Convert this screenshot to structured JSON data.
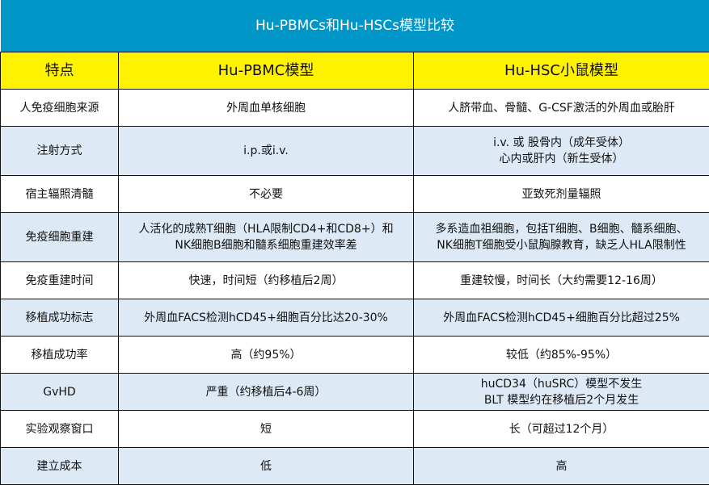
{
  "title": "Hu-PBMCs和Hu-HSCs模型比较",
  "colors": {
    "title_bg": "#0096c8",
    "header_bg": "#fff200",
    "alt_row_bg": "#dde9f5"
  },
  "headers": [
    "特点",
    "Hu-PBMC模型",
    "Hu-HSC小鼠模型"
  ],
  "rows": [
    {
      "feature": "人免疫细胞来源",
      "pbmc": [
        "外周血单核细胞"
      ],
      "hsc": [
        "人脐带血、骨髓、G-CSF激活的外周血或胎肝"
      ]
    },
    {
      "feature": "注射方式",
      "pbmc": [
        "i.p.或i.v."
      ],
      "hsc": [
        "i.v. 或 股骨内（成年受体）",
        "心内或肝内（新生受体）"
      ]
    },
    {
      "feature": "宿主辐照清髓",
      "pbmc": [
        "不必要"
      ],
      "hsc": [
        "亚致死剂量辐照"
      ]
    },
    {
      "feature": "免疫细胞重建",
      "pbmc": [
        "人活化的成熟T细胞（HLA限制CD4+和CD8+）和",
        "NK细胞B细胞和髓系细胞重建效率差"
      ],
      "hsc": [
        "多系造血祖细胞，包括T细胞、B细胞、髓系细胞、",
        "NK细胞T细胞受小鼠胸腺教育，缺乏人HLA限制性"
      ]
    },
    {
      "feature": "免疫重建时间",
      "pbmc": [
        "快速，时间短（约移植后2周）"
      ],
      "hsc": [
        "重建较慢，时间长（大约需要12-16周）"
      ]
    },
    {
      "feature": "移植成功标志",
      "pbmc": [
        "外周血FACS检测hCD45+细胞百分比达20-30%"
      ],
      "hsc": [
        "外周血FACS检测hCD45+细胞百分比超过25%"
      ]
    },
    {
      "feature": "移植成功率",
      "pbmc": [
        "高（约95%）"
      ],
      "hsc": [
        "较低（约85%-95%）"
      ]
    },
    {
      "feature": "GvHD",
      "pbmc": [
        "严重（约移植后4-6周）"
      ],
      "hsc": [
        "huCD34（huSRC）模型不发生",
        "BLT 模型约在移植后2个月发生"
      ]
    },
    {
      "feature": "实验观察窗口",
      "pbmc": [
        "短"
      ],
      "hsc": [
        "长（可超过12个月）"
      ]
    },
    {
      "feature": "建立成本",
      "pbmc": [
        "低"
      ],
      "hsc": [
        "高"
      ]
    }
  ]
}
